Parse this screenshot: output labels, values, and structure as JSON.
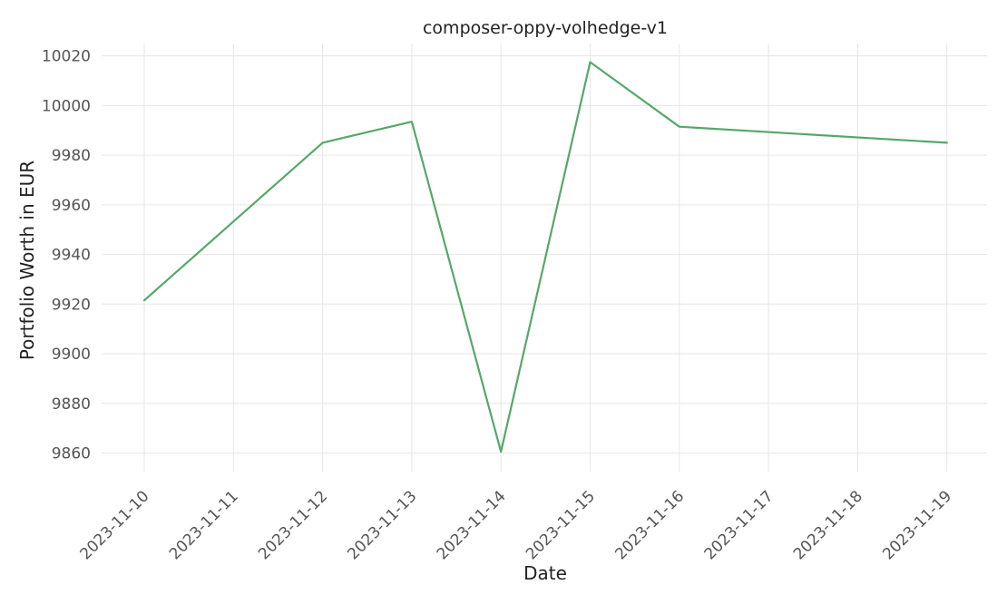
{
  "chart_data": {
    "type": "line",
    "title": "composer-oppy-volhedge-v1",
    "xlabel": "Date",
    "ylabel": "Portfolio Worth in EUR",
    "x": [
      "2023-11-10",
      "2023-11-11",
      "2023-11-12",
      "2023-11-13",
      "2023-11-14",
      "2023-11-15",
      "2023-11-16",
      "2023-11-17",
      "2023-11-18",
      "2023-11-19"
    ],
    "series": [
      {
        "color": "#55a868",
        "points": [
          {
            "x": "2023-11-10",
            "y": 9921.5
          },
          {
            "x": "2023-11-12",
            "y": 9985
          },
          {
            "x": "2023-11-13",
            "y": 9993.5
          },
          {
            "x": "2023-11-14",
            "y": 9860.5
          },
          {
            "x": "2023-11-15",
            "y": 10017.5
          },
          {
            "x": "2023-11-16",
            "y": 9991.5
          },
          {
            "x": "2023-11-19",
            "y": 9985
          }
        ]
      }
    ],
    "yticks": [
      9860,
      9880,
      9900,
      9920,
      9940,
      9960,
      9980,
      10000,
      10020
    ],
    "ylim": [
      9852.5,
      10025
    ],
    "grid": true,
    "legend": "none"
  }
}
